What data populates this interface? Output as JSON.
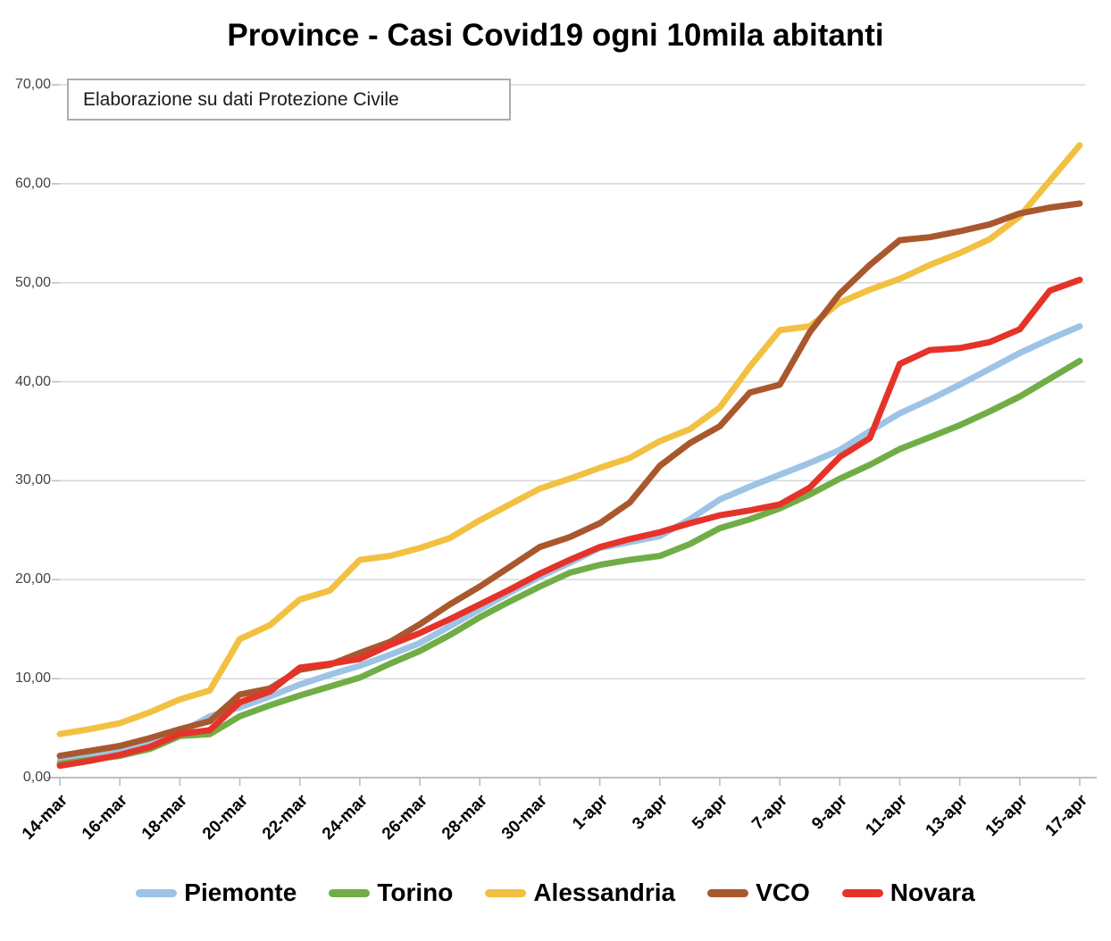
{
  "title": "Province - Casi Covid19 ogni 10mila abitanti",
  "annotation": "Elaborazione su dati Protezione Civile",
  "chart_data": {
    "type": "line",
    "x": [
      "14-mar",
      "15-mar",
      "16-mar",
      "17-mar",
      "18-mar",
      "19-mar",
      "20-mar",
      "21-mar",
      "22-mar",
      "23-mar",
      "24-mar",
      "25-mar",
      "26-mar",
      "27-mar",
      "28-mar",
      "29-mar",
      "30-mar",
      "31-mar",
      "1-apr",
      "2-apr",
      "3-apr",
      "4-apr",
      "5-apr",
      "6-apr",
      "7-apr",
      "8-apr",
      "9-apr",
      "10-apr",
      "11-apr",
      "12-apr",
      "13-apr",
      "14-apr",
      "15-apr",
      "16-apr",
      "17-apr"
    ],
    "x_tick_labels": [
      "14-mar",
      "16-mar",
      "18-mar",
      "20-mar",
      "22-mar",
      "24-mar",
      "26-mar",
      "28-mar",
      "30-mar",
      "1-apr",
      "3-apr",
      "5-apr",
      "7-apr",
      "9-apr",
      "11-apr",
      "13-apr",
      "15-apr",
      "17-apr"
    ],
    "y_tick_labels": [
      "0,00",
      "10,00",
      "20,00",
      "30,00",
      "40,00",
      "50,00",
      "60,00",
      "70,00"
    ],
    "ylim": [
      0,
      70
    ],
    "xlabel": "",
    "ylabel": "",
    "grid": true,
    "legend_position": "bottom",
    "series": [
      {
        "name": "Piemonte",
        "color": "#9DC3E6",
        "values": [
          1.7,
          2.1,
          2.6,
          3.4,
          4.5,
          6.2,
          7.1,
          8.2,
          9.4,
          10.4,
          11.3,
          12.4,
          13.6,
          15.3,
          17.0,
          18.7,
          20.3,
          21.7,
          23.2,
          23.8,
          24.4,
          26.1,
          28.1,
          29.4,
          30.6,
          31.8,
          33.1,
          35.0,
          36.8,
          38.2,
          39.7,
          41.3,
          42.9,
          44.3,
          45.6
        ]
      },
      {
        "name": "Torino",
        "color": "#70AD47",
        "values": [
          1.4,
          1.8,
          2.2,
          2.9,
          4.2,
          4.4,
          6.2,
          7.3,
          8.3,
          9.2,
          10.1,
          11.5,
          12.8,
          14.4,
          16.2,
          17.8,
          19.3,
          20.7,
          21.5,
          22.0,
          22.4,
          23.6,
          25.2,
          26.1,
          27.2,
          28.6,
          30.2,
          31.6,
          33.2,
          34.4,
          35.6,
          37.0,
          38.5,
          40.3,
          42.1
        ]
      },
      {
        "name": "Alessandria",
        "color": "#F2C142",
        "values": [
          4.4,
          4.9,
          5.5,
          6.6,
          7.9,
          8.8,
          14.0,
          15.4,
          18.0,
          18.9,
          22.0,
          22.4,
          23.2,
          24.2,
          26.0,
          27.6,
          29.2,
          30.2,
          31.3,
          32.3,
          34.0,
          35.2,
          37.4,
          41.5,
          45.2,
          45.6,
          48.0,
          49.3,
          50.4,
          51.8,
          53.0,
          54.4,
          56.7,
          60.3,
          63.9
        ]
      },
      {
        "name": "VCO",
        "color": "#A9582E",
        "values": [
          2.2,
          2.7,
          3.2,
          4.0,
          4.9,
          5.7,
          8.4,
          9.0,
          10.9,
          11.4,
          12.6,
          13.7,
          15.5,
          17.5,
          19.3,
          21.3,
          23.3,
          24.3,
          25.7,
          27.8,
          31.5,
          33.8,
          35.5,
          38.9,
          39.7,
          45.0,
          48.9,
          51.8,
          54.3,
          54.6,
          55.2,
          55.9,
          57.0,
          57.6,
          58.0
        ]
      },
      {
        "name": "Novara",
        "color": "#E5332A",
        "values": [
          1.2,
          1.7,
          2.3,
          3.1,
          4.4,
          4.8,
          7.6,
          8.7,
          11.1,
          11.5,
          12.0,
          13.4,
          14.6,
          16.0,
          17.5,
          19.0,
          20.6,
          22.0,
          23.3,
          24.1,
          24.8,
          25.7,
          26.5,
          27.0,
          27.6,
          29.3,
          32.4,
          34.3,
          41.8,
          43.2,
          43.4,
          44.0,
          45.3,
          49.2,
          50.3
        ]
      }
    ]
  }
}
